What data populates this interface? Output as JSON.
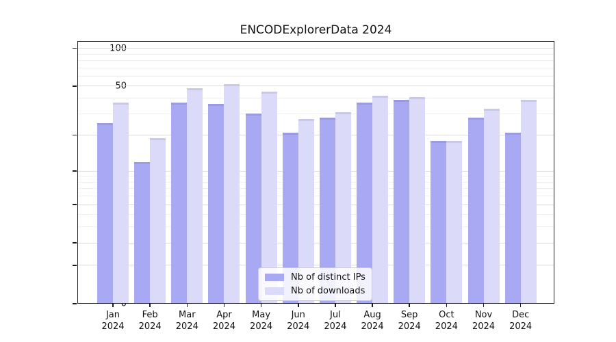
{
  "chart_data": {
    "type": "bar",
    "title": "ENCODExplorerData 2024",
    "categories": [
      "Jan 2024",
      "Feb 2024",
      "Mar 2024",
      "Apr 2024",
      "May 2024",
      "Jun 2024",
      "Jul 2024",
      "Aug 2024",
      "Sep 2024",
      "Oct 2024",
      "Nov 2024",
      "Dec 2024"
    ],
    "series": [
      {
        "name": "Nb of distinct IPs",
        "color": "#a9a9f3",
        "values": [
          25,
          12,
          37,
          36,
          30,
          21,
          28,
          37,
          39,
          18,
          28,
          21
        ]
      },
      {
        "name": "Nb of downloads",
        "color": "#dbdbf9",
        "values": [
          37,
          19,
          48,
          52,
          45,
          27,
          31,
          42,
          41,
          18,
          33,
          39
        ]
      }
    ],
    "yscale": "symlog",
    "ylim": [
      0,
      115
    ],
    "yticks": [
      0,
      1,
      2,
      5,
      10,
      20,
      50,
      100
    ],
    "minor_yticks": [
      3,
      4,
      6,
      7,
      8,
      9,
      30,
      40,
      60,
      70,
      80,
      90
    ],
    "grid": true,
    "legend_position": "inside-bottom-center"
  },
  "colors": {
    "major_grid": "#dcdcdc",
    "minor_grid": "#efefef",
    "spine": "#1c1c1c",
    "text": "#111111"
  }
}
